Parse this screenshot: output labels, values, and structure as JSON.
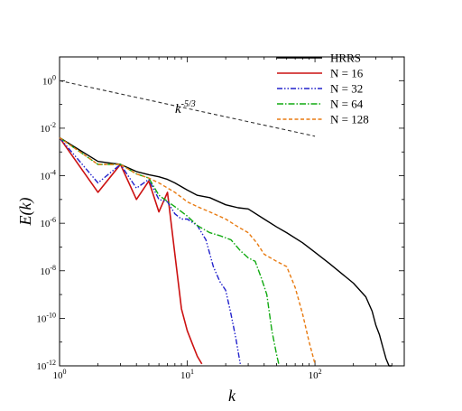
{
  "chart_data": {
    "type": "line",
    "xlabel": "k",
    "ylabel": "E(k)",
    "xscale": "log",
    "yscale": "log",
    "xlim": [
      1,
      500
    ],
    "ylim": [
      1e-12,
      10
    ],
    "xticks": [
      {
        "value": 1,
        "base": "10",
        "exp": "0"
      },
      {
        "value": 10,
        "base": "10",
        "exp": "1"
      },
      {
        "value": 100,
        "base": "10",
        "exp": "2"
      }
    ],
    "yticks": [
      {
        "value": 1,
        "base": "10",
        "exp": "0"
      },
      {
        "value": 0.01,
        "base": "10",
        "exp": "-2"
      },
      {
        "value": 0.0001,
        "base": "10",
        "exp": "-4"
      },
      {
        "value": 1e-06,
        "base": "10",
        "exp": "-6"
      },
      {
        "value": 1e-08,
        "base": "10",
        "exp": "-8"
      },
      {
        "value": 1e-10,
        "base": "10",
        "exp": "-10"
      },
      {
        "value": 1e-12,
        "base": "10",
        "exp": "-12"
      }
    ],
    "legend_position": "top-right",
    "annotation": {
      "base": "k",
      "exp": "-5/3",
      "at": [
        9,
        0.012
      ]
    },
    "reference_line": {
      "name": "k^-5/3",
      "color": "#333333",
      "x": [
        1,
        100
      ],
      "y": [
        1,
        0.0046
      ]
    },
    "series": [
      {
        "name": "HRRS",
        "color": "#000000",
        "dash": "",
        "width": 1.4,
        "x": [
          1,
          2,
          3,
          4,
          5,
          6,
          7,
          8,
          10,
          12,
          15,
          20,
          25,
          30,
          40,
          50,
          60,
          80,
          100,
          130,
          160,
          200,
          250,
          280,
          300,
          320,
          340,
          360,
          380,
          400
        ],
        "y": [
          0.004,
          0.0004,
          0.0003,
          0.00015,
          0.00011,
          9e-05,
          7e-05,
          5e-05,
          2.5e-05,
          1.5e-05,
          1.2e-05,
          6e-06,
          4.5e-06,
          4e-06,
          1.5e-06,
          7e-07,
          4e-07,
          1.5e-07,
          6e-08,
          2e-08,
          8e-09,
          3e-09,
          8e-10,
          2e-10,
          5e-11,
          2e-11,
          6e-12,
          2e-12,
          1e-12,
          1e-12
        ]
      },
      {
        "name": "N = 16",
        "color": "#cc1111",
        "dash": "",
        "width": 1.6,
        "x": [
          1,
          2,
          3,
          4,
          5,
          6,
          7,
          8,
          9,
          10,
          11,
          12,
          13
        ],
        "y": [
          0.004,
          2e-05,
          0.0003,
          1e-05,
          6e-05,
          3e-06,
          2e-05,
          5e-08,
          2.5e-10,
          3e-11,
          8e-12,
          2.5e-12,
          1.2e-12
        ]
      },
      {
        "name": "N = 32",
        "color": "#2222cc",
        "dash": "6,2,1.5,2,1.5,2",
        "width": 1.4,
        "x": [
          1,
          2,
          3,
          4,
          5,
          6,
          7,
          8,
          9,
          10,
          12,
          14,
          16,
          18,
          20,
          22,
          24,
          25,
          26
        ],
        "y": [
          0.004,
          5e-05,
          0.0003,
          3e-05,
          7e-05,
          1e-05,
          8e-06,
          2.5e-06,
          1.5e-06,
          1.5e-06,
          8e-07,
          2e-07,
          1.5e-08,
          3.5e-09,
          1.5e-09,
          1.5e-10,
          1.5e-11,
          4e-12,
          1.2e-12
        ]
      },
      {
        "name": "N = 64",
        "color": "#11aa11",
        "dash": "7,2,1.5,2",
        "width": 1.4,
        "x": [
          1,
          2,
          3,
          4,
          5,
          6,
          8,
          10,
          12,
          15,
          18,
          22,
          26,
          30,
          34,
          38,
          42,
          46,
          50,
          52
        ],
        "y": [
          0.004,
          0.0003,
          0.0003,
          0.00012,
          8e-05,
          1.5e-05,
          5e-06,
          2e-06,
          8e-07,
          4e-07,
          3e-07,
          2e-07,
          7e-08,
          3.5e-08,
          2.5e-08,
          5e-09,
          1e-09,
          3e-11,
          3e-12,
          1.2e-12
        ]
      },
      {
        "name": "N = 128",
        "color": "#e87a10",
        "dash": "4,2.5",
        "width": 1.4,
        "x": [
          1,
          2,
          3,
          4,
          5,
          6,
          8,
          10,
          12,
          15,
          20,
          25,
          30,
          35,
          40,
          50,
          60,
          70,
          80,
          90,
          100
        ],
        "y": [
          0.004,
          0.0003,
          0.0003,
          0.00012,
          8e-05,
          5e-05,
          2e-05,
          8e-06,
          5e-06,
          3e-06,
          1.5e-06,
          7e-07,
          4e-07,
          1.5e-07,
          5e-08,
          2.5e-08,
          1.5e-08,
          2e-09,
          1.5e-10,
          1e-11,
          1.2e-12
        ]
      }
    ]
  }
}
